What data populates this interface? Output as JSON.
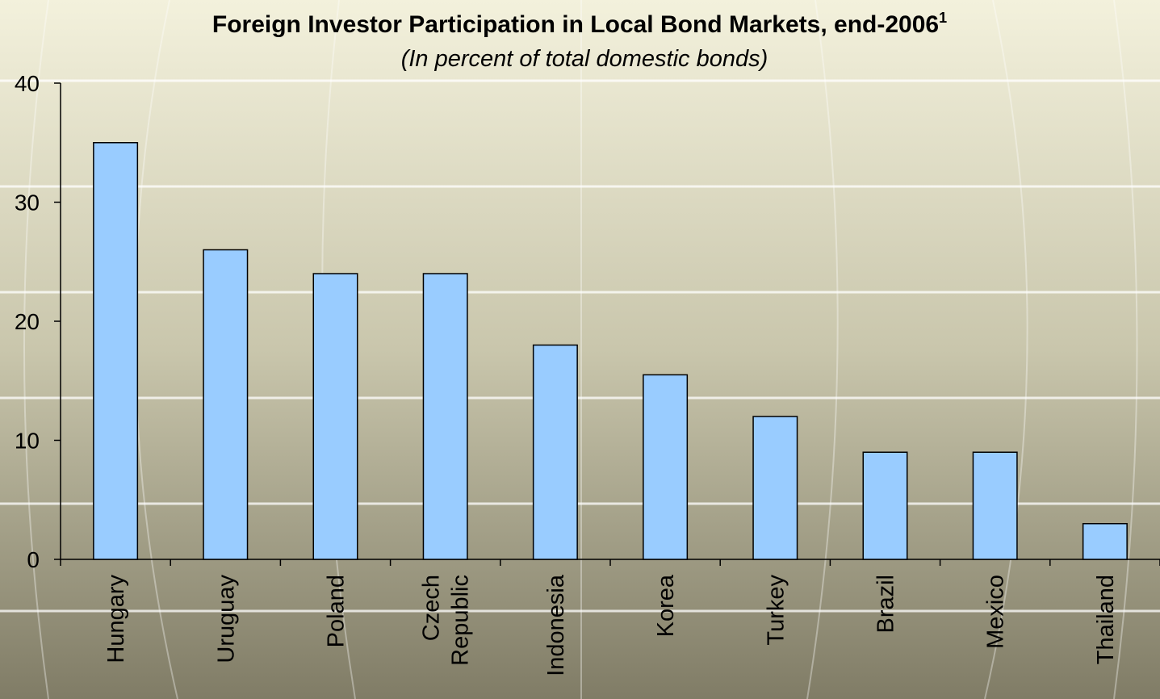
{
  "chart_data": {
    "type": "bar",
    "title": "Foreign Investor Participation in Local Bond Markets, end-2006",
    "title_superscript": "1",
    "subtitle": "(In percent of total domestic bonds)",
    "categories": [
      "Hungary",
      "Uruguay",
      "Poland",
      "Czech Republic",
      "Indonesia",
      "Korea",
      "Turkey",
      "Brazil",
      "Mexico",
      "Thailand"
    ],
    "values": [
      35,
      26,
      24,
      24,
      18,
      15.5,
      12,
      9,
      9,
      3
    ],
    "color": "#99ccff",
    "ylim": [
      0,
      40
    ],
    "yticks": [
      0,
      10,
      20,
      30,
      40
    ],
    "grid": false
  }
}
